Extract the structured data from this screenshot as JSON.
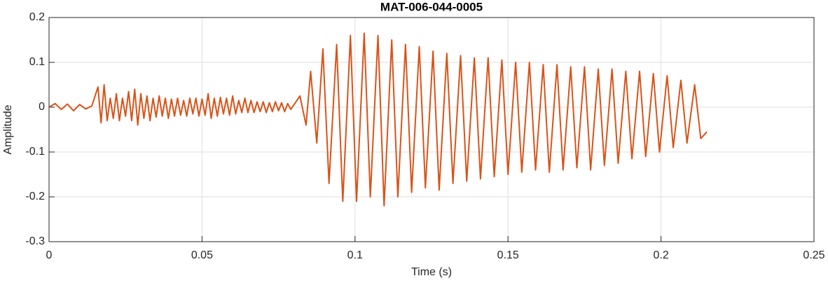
{
  "chart_data": {
    "type": "line",
    "title": "MAT-006-044-0005",
    "x_label": "Time (s)",
    "y_label": "Amplitude",
    "xlim": [
      0,
      0.25
    ],
    "xticks": [
      0,
      0.05,
      0.1,
      0.15,
      0.2,
      0.25
    ],
    "ylim": [
      -0.3,
      0.2
    ],
    "yticks": [
      -0.3,
      -0.2,
      -0.1,
      0,
      0.1,
      0.2
    ],
    "grid": true,
    "series": [
      {
        "name": "MAT-006-044-0005",
        "color": "#d95319",
        "x": [
          0,
          0.002,
          0.004,
          0.006,
          0.008,
          0.01,
          0.012,
          0.014,
          0.016,
          0.017,
          0.018,
          0.019,
          0.02,
          0.021,
          0.022,
          0.023,
          0.024,
          0.025,
          0.026,
          0.027,
          0.028,
          0.029,
          0.03,
          0.031,
          0.032,
          0.033,
          0.034,
          0.035,
          0.036,
          0.037,
          0.038,
          0.039,
          0.04,
          0.041,
          0.042,
          0.043,
          0.044,
          0.045,
          0.046,
          0.047,
          0.048,
          0.049,
          0.05,
          0.051,
          0.052,
          0.053,
          0.054,
          0.055,
          0.056,
          0.057,
          0.058,
          0.059,
          0.06,
          0.061,
          0.062,
          0.063,
          0.064,
          0.065,
          0.066,
          0.067,
          0.068,
          0.069,
          0.07,
          0.071,
          0.072,
          0.073,
          0.074,
          0.075,
          0.076,
          0.077,
          0.078,
          0.079,
          0.08,
          0.082,
          0.084,
          0.0855,
          0.0875,
          0.0895,
          0.0915,
          0.094,
          0.096,
          0.0985,
          0.1005,
          0.103,
          0.105,
          0.1075,
          0.1095,
          0.112,
          0.114,
          0.1165,
          0.1185,
          0.121,
          0.123,
          0.1255,
          0.1275,
          0.13,
          0.132,
          0.1345,
          0.1365,
          0.139,
          0.141,
          0.1435,
          0.1455,
          0.148,
          0.15,
          0.1525,
          0.1545,
          0.157,
          0.159,
          0.1615,
          0.1635,
          0.166,
          0.168,
          0.1705,
          0.1725,
          0.175,
          0.177,
          0.1795,
          0.1815,
          0.184,
          0.186,
          0.1885,
          0.1905,
          0.193,
          0.195,
          0.1975,
          0.1995,
          0.202,
          0.204,
          0.2065,
          0.2085,
          0.211,
          0.213,
          0.215
        ],
        "values": [
          0,
          0.008,
          -0.005,
          0.007,
          -0.008,
          0.006,
          -0.004,
          0.003,
          0.045,
          -0.035,
          0.05,
          -0.03,
          0.02,
          -0.025,
          0.03,
          -0.03,
          0.02,
          -0.02,
          0.035,
          -0.03,
          0.04,
          -0.04,
          0.03,
          -0.025,
          0.025,
          -0.03,
          0.02,
          -0.022,
          0.025,
          -0.02,
          0.02,
          -0.025,
          0.018,
          -0.02,
          0.02,
          -0.018,
          0.015,
          -0.02,
          0.02,
          -0.015,
          0.02,
          -0.02,
          0.018,
          -0.018,
          0.03,
          -0.025,
          0.02,
          -0.02,
          0.022,
          -0.015,
          0.02,
          -0.018,
          0.025,
          -0.015,
          0.015,
          -0.012,
          0.02,
          -0.012,
          0.015,
          -0.012,
          0.012,
          -0.01,
          0.012,
          -0.012,
          0.01,
          -0.01,
          0.012,
          -0.008,
          0.01,
          -0.01,
          0.008,
          -0.005,
          0.005,
          0.025,
          -0.04,
          0.08,
          -0.08,
          0.13,
          -0.17,
          0.14,
          -0.21,
          0.16,
          -0.21,
          0.165,
          -0.2,
          0.16,
          -0.22,
          0.15,
          -0.2,
          0.14,
          -0.19,
          0.135,
          -0.18,
          0.125,
          -0.185,
          0.12,
          -0.17,
          0.115,
          -0.165,
          0.11,
          -0.16,
          0.11,
          -0.155,
          0.105,
          -0.15,
          0.1,
          -0.145,
          0.1,
          -0.14,
          0.095,
          -0.145,
          0.095,
          -0.14,
          0.09,
          -0.135,
          0.09,
          -0.14,
          0.085,
          -0.13,
          0.085,
          -0.125,
          0.08,
          -0.115,
          0.08,
          -0.11,
          0.075,
          -0.1,
          0.07,
          -0.09,
          0.06,
          -0.08,
          0.05,
          -0.07,
          -0.055
        ]
      }
    ]
  }
}
